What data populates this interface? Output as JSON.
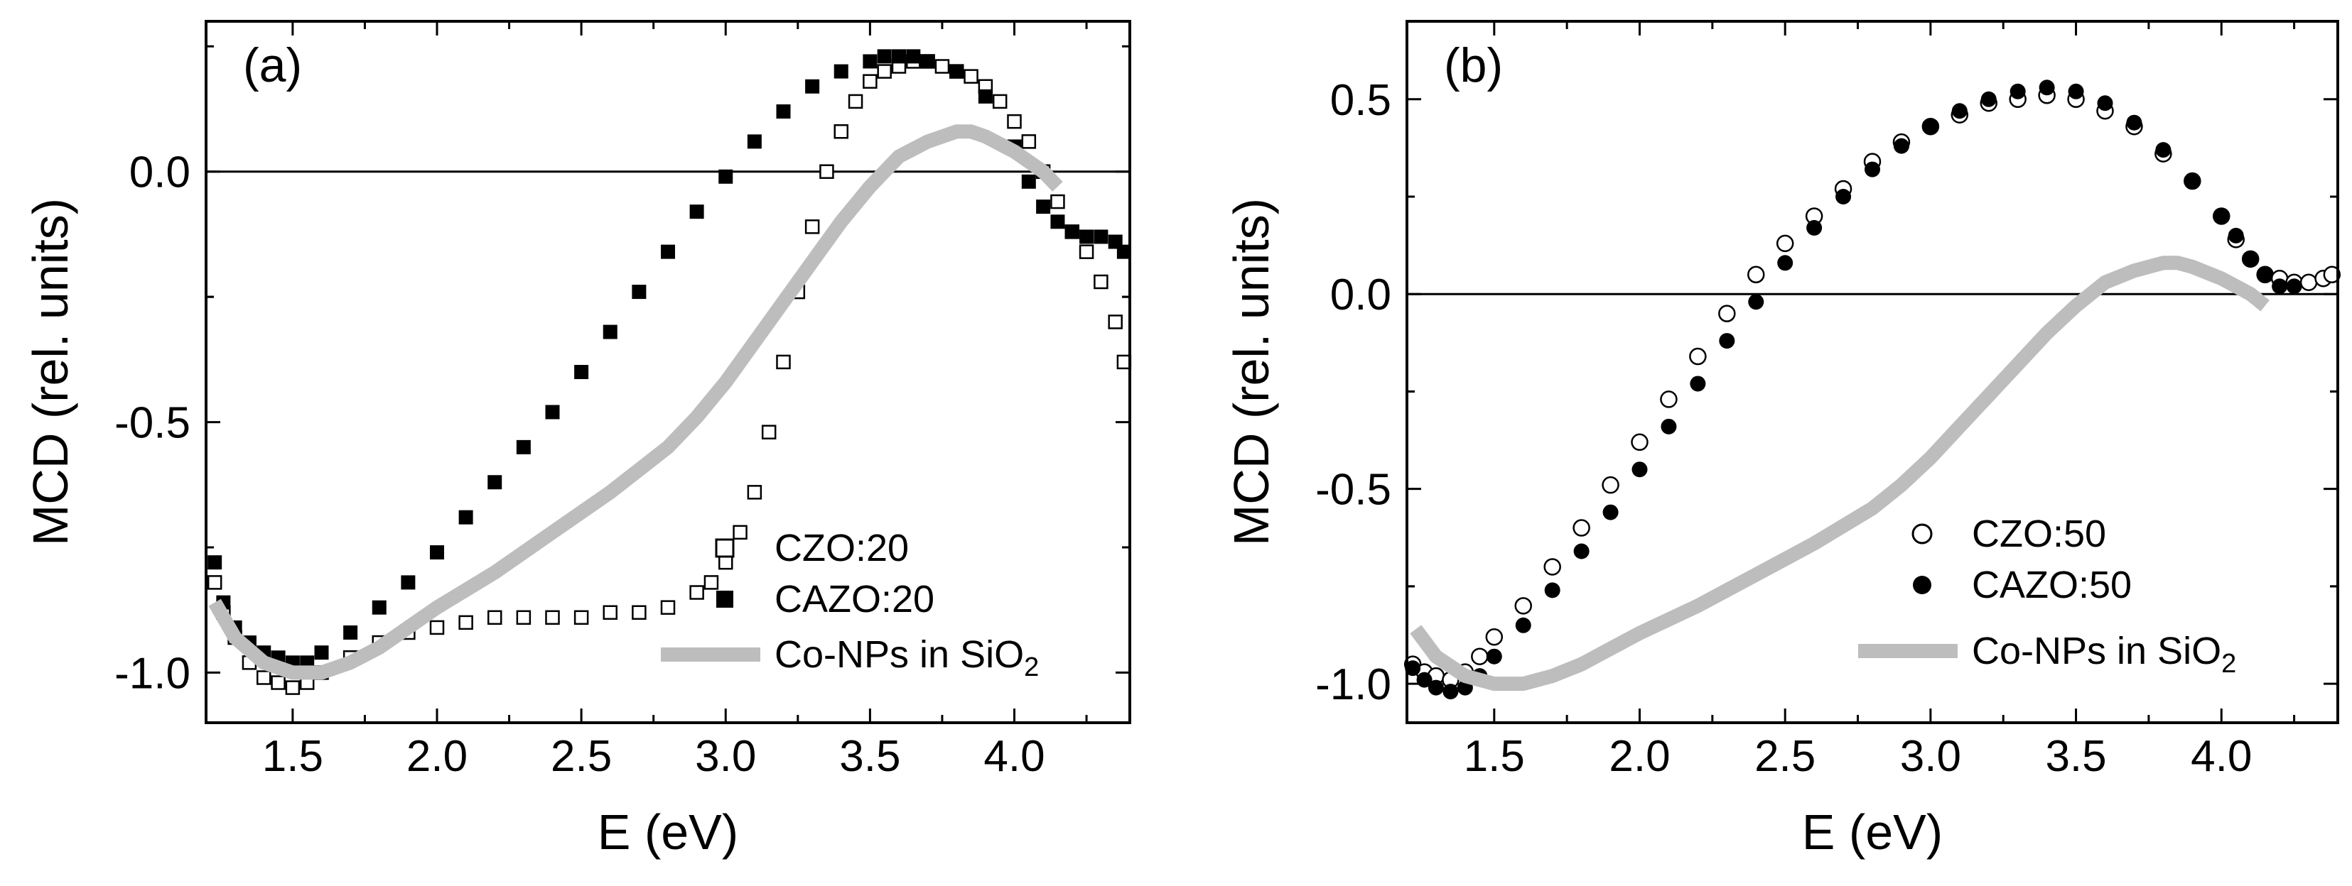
{
  "chart_data": [
    {
      "type": "scatter",
      "panel": "(a)",
      "xlabel": "E (eV)",
      "ylabel": "MCD (rel. units)",
      "xlim": [
        1.2,
        4.4
      ],
      "ylim": [
        -1.1,
        0.3
      ],
      "xticks": [
        1.5,
        2.0,
        2.5,
        3.0,
        3.5,
        4.0
      ],
      "xtick_labels": [
        "1.5",
        "2.0",
        "2.5",
        "3.0",
        "3.5",
        "4.0"
      ],
      "yticks": [
        -1.0,
        -0.5,
        0.0
      ],
      "ytick_labels": [
        "-1.0",
        "-0.5",
        "0.0"
      ],
      "zero_line": 0,
      "legend_position": "bottom-right",
      "series": [
        {
          "name": "CZO:20",
          "marker": "open-square",
          "x": [
            1.23,
            1.26,
            1.3,
            1.35,
            1.4,
            1.45,
            1.5,
            1.55,
            1.6,
            1.7,
            1.8,
            1.9,
            2.0,
            2.1,
            2.2,
            2.3,
            2.4,
            2.5,
            2.6,
            2.7,
            2.8,
            2.9,
            2.95,
            3.0,
            3.05,
            3.1,
            3.15,
            3.2,
            3.25,
            3.3,
            3.35,
            3.4,
            3.45,
            3.5,
            3.55,
            3.6,
            3.65,
            3.7,
            3.75,
            3.8,
            3.85,
            3.9,
            3.95,
            4.0,
            4.05,
            4.1,
            4.15,
            4.2,
            4.25,
            4.3,
            4.35,
            4.38
          ],
          "y": [
            -0.82,
            -0.88,
            -0.93,
            -0.98,
            -1.01,
            -1.02,
            -1.03,
            -1.02,
            -1.0,
            -0.97,
            -0.94,
            -0.92,
            -0.91,
            -0.9,
            -0.89,
            -0.89,
            -0.89,
            -0.89,
            -0.88,
            -0.88,
            -0.87,
            -0.84,
            -0.82,
            -0.78,
            -0.72,
            -0.64,
            -0.52,
            -0.38,
            -0.24,
            -0.11,
            0.0,
            0.08,
            0.14,
            0.18,
            0.2,
            0.21,
            0.22,
            0.22,
            0.21,
            0.2,
            0.19,
            0.17,
            0.14,
            0.1,
            0.06,
            0.0,
            -0.06,
            -0.12,
            -0.16,
            -0.22,
            -0.3,
            -0.38
          ]
        },
        {
          "name": "CAZO:20",
          "marker": "filled-square",
          "x": [
            1.23,
            1.26,
            1.3,
            1.35,
            1.4,
            1.45,
            1.5,
            1.55,
            1.6,
            1.7,
            1.8,
            1.9,
            2.0,
            2.1,
            2.2,
            2.3,
            2.4,
            2.5,
            2.6,
            2.7,
            2.8,
            2.9,
            3.0,
            3.1,
            3.2,
            3.3,
            3.4,
            3.5,
            3.55,
            3.6,
            3.65,
            3.7,
            3.8,
            3.9,
            4.0,
            4.05,
            4.1,
            4.15,
            4.2,
            4.25,
            4.3,
            4.35,
            4.38
          ],
          "y": [
            -0.78,
            -0.86,
            -0.91,
            -0.94,
            -0.96,
            -0.97,
            -0.98,
            -0.98,
            -0.96,
            -0.92,
            -0.87,
            -0.82,
            -0.76,
            -0.69,
            -0.62,
            -0.55,
            -0.48,
            -0.4,
            -0.32,
            -0.24,
            -0.16,
            -0.08,
            -0.01,
            0.06,
            0.12,
            0.17,
            0.2,
            0.22,
            0.23,
            0.23,
            0.23,
            0.22,
            0.2,
            0.15,
            0.05,
            -0.02,
            -0.07,
            -0.1,
            -0.12,
            -0.13,
            -0.13,
            -0.14,
            -0.16
          ]
        },
        {
          "name": "Co-NPs in SiO",
          "name_subscript": "2",
          "style": "thick-gray-line",
          "x": [
            1.23,
            1.3,
            1.4,
            1.5,
            1.6,
            1.7,
            1.8,
            1.9,
            2.0,
            2.2,
            2.4,
            2.6,
            2.8,
            2.9,
            3.0,
            3.1,
            3.2,
            3.3,
            3.4,
            3.5,
            3.6,
            3.7,
            3.8,
            3.85,
            3.9,
            4.0,
            4.1,
            4.15
          ],
          "y": [
            -0.86,
            -0.93,
            -0.98,
            -1.0,
            -1.0,
            -0.98,
            -0.95,
            -0.91,
            -0.87,
            -0.8,
            -0.72,
            -0.64,
            -0.55,
            -0.49,
            -0.42,
            -0.34,
            -0.26,
            -0.18,
            -0.1,
            -0.03,
            0.03,
            0.06,
            0.08,
            0.08,
            0.07,
            0.04,
            0.0,
            -0.03
          ]
        }
      ]
    },
    {
      "type": "scatter",
      "panel": "(b)",
      "xlabel": "E (eV)",
      "ylabel": "MCD (rel. units)",
      "xlim": [
        1.2,
        4.4
      ],
      "ylim": [
        -1.1,
        0.7
      ],
      "xticks": [
        1.5,
        2.0,
        2.5,
        3.0,
        3.5,
        4.0
      ],
      "xtick_labels": [
        "1.5",
        "2.0",
        "2.5",
        "3.0",
        "3.5",
        "4.0"
      ],
      "yticks": [
        -1.0,
        -0.5,
        0.0,
        0.5
      ],
      "ytick_labels": [
        "-1.0",
        "-0.5",
        "0.0",
        "0.5"
      ],
      "zero_line": 0,
      "legend_position": "bottom-right",
      "series": [
        {
          "name": "CZO:50",
          "marker": "open-circle",
          "x": [
            1.22,
            1.26,
            1.3,
            1.35,
            1.4,
            1.45,
            1.5,
            1.6,
            1.7,
            1.8,
            1.9,
            2.0,
            2.1,
            2.2,
            2.3,
            2.4,
            2.5,
            2.6,
            2.7,
            2.8,
            2.9,
            3.0,
            3.1,
            3.2,
            3.3,
            3.4,
            3.5,
            3.6,
            3.7,
            3.8,
            3.9,
            4.0,
            4.05,
            4.1,
            4.15,
            4.2,
            4.25,
            4.3,
            4.35,
            4.38
          ],
          "y": [
            -0.95,
            -0.97,
            -0.98,
            -0.99,
            -0.97,
            -0.93,
            -0.88,
            -0.8,
            -0.7,
            -0.6,
            -0.49,
            -0.38,
            -0.27,
            -0.16,
            -0.05,
            0.05,
            0.13,
            0.2,
            0.27,
            0.34,
            0.39,
            0.43,
            0.46,
            0.49,
            0.5,
            0.51,
            0.5,
            0.47,
            0.43,
            0.36,
            0.29,
            0.2,
            0.14,
            0.09,
            0.05,
            0.04,
            0.03,
            0.03,
            0.04,
            0.05
          ]
        },
        {
          "name": "CAZO:50",
          "marker": "filled-circle",
          "x": [
            1.22,
            1.26,
            1.3,
            1.35,
            1.4,
            1.45,
            1.5,
            1.6,
            1.7,
            1.8,
            1.9,
            2.0,
            2.1,
            2.2,
            2.3,
            2.4,
            2.5,
            2.6,
            2.7,
            2.8,
            2.9,
            3.0,
            3.1,
            3.2,
            3.3,
            3.4,
            3.5,
            3.6,
            3.7,
            3.8,
            3.9,
            4.0,
            4.05,
            4.1,
            4.15,
            4.2,
            4.25
          ],
          "y": [
            -0.96,
            -0.99,
            -1.01,
            -1.02,
            -1.01,
            -0.98,
            -0.93,
            -0.85,
            -0.76,
            -0.66,
            -0.56,
            -0.45,
            -0.34,
            -0.23,
            -0.12,
            -0.02,
            0.08,
            0.17,
            0.25,
            0.32,
            0.38,
            0.43,
            0.47,
            0.5,
            0.52,
            0.53,
            0.52,
            0.49,
            0.44,
            0.37,
            0.29,
            0.2,
            0.15,
            0.09,
            0.05,
            0.02,
            0.02
          ]
        },
        {
          "name": "Co-NPs in SiO",
          "name_subscript": "2",
          "style": "thick-gray-line",
          "x": [
            1.23,
            1.3,
            1.4,
            1.5,
            1.6,
            1.7,
            1.8,
            1.9,
            2.0,
            2.2,
            2.4,
            2.6,
            2.8,
            2.9,
            3.0,
            3.1,
            3.2,
            3.3,
            3.4,
            3.5,
            3.6,
            3.7,
            3.8,
            3.85,
            3.9,
            4.0,
            4.1,
            4.15
          ],
          "y": [
            -0.86,
            -0.93,
            -0.98,
            -1.0,
            -1.0,
            -0.98,
            -0.95,
            -0.91,
            -0.87,
            -0.8,
            -0.72,
            -0.64,
            -0.55,
            -0.49,
            -0.42,
            -0.34,
            -0.26,
            -0.18,
            -0.1,
            -0.03,
            0.03,
            0.06,
            0.08,
            0.08,
            0.07,
            0.04,
            0.0,
            -0.03
          ]
        }
      ]
    }
  ]
}
